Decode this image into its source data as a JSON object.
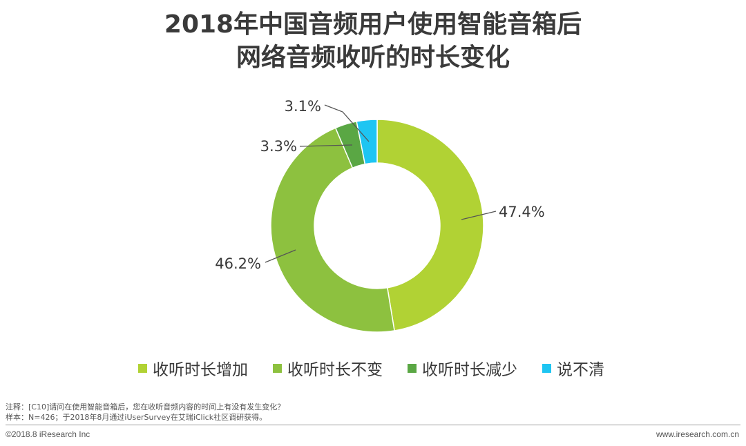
{
  "title": {
    "line1": "2018年中国音频用户使用智能音箱后",
    "line2": "网络音频收听的时长变化"
  },
  "colors": {
    "increase": "#B1D234",
    "unchanged": "#8DC13F",
    "decrease": "#5AA744",
    "unclear": "#1EC5F2",
    "leader": "#555555",
    "label_text": "#3a3a3a"
  },
  "chart_data": {
    "type": "pie",
    "subtype": "donut",
    "start": "12 o'clock, clockwise",
    "slices": [
      {
        "label": "收听时长增加",
        "value": 47.4,
        "display": "47.4%",
        "color": "#B1D234"
      },
      {
        "label": "收听时长不变",
        "value": 46.2,
        "display": "46.2%",
        "color": "#8DC13F"
      },
      {
        "label": "收听时长减少",
        "value": 3.3,
        "display": "3.3%",
        "color": "#5AA744"
      },
      {
        "label": "说不清",
        "value": 3.1,
        "display": "3.1%",
        "color": "#1EC5F2"
      }
    ],
    "legend_position": "bottom"
  },
  "legend": [
    {
      "label": "收听时长增加",
      "color": "#B1D234"
    },
    {
      "label": "收听时长不变",
      "color": "#8DC13F"
    },
    {
      "label": "收听时长减少",
      "color": "#5AA744"
    },
    {
      "label": "说不清",
      "color": "#1EC5F2"
    }
  ],
  "notes": {
    "note": "注释：[C10]请问在使用智能音箱后，您在收听音频内容的时间上有没有发生变化？",
    "sample": "样本：N=426；于2018年8月通过iUserSurvey在艾瑞iClick社区调研获得。"
  },
  "footer": {
    "copyright": "©2018.8 iResearch Inc",
    "site": "www.iresearch.com.cn"
  }
}
